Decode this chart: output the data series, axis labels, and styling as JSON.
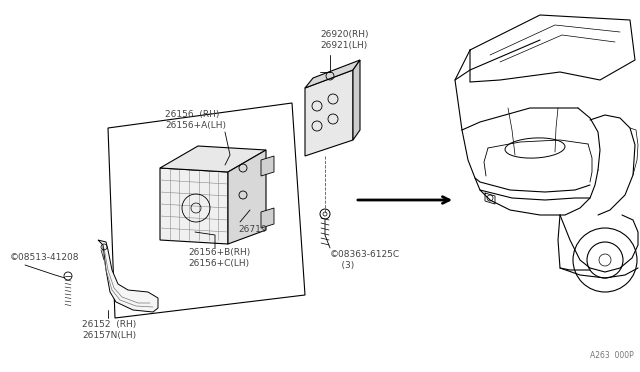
{
  "bg_color": "#ffffff",
  "lc": "#000000",
  "gray": "#999999",
  "page_num": "A263  000P",
  "labels": {
    "part_26920": "26920(RH)\n26921(LH)",
    "part_26156_top": "26156  (RH)\n26156+A(LH)",
    "part_26719": "26719",
    "part_26156_b": "26156+B(RH)\n26156+C(LH)",
    "part_26152": "26152  (RH)\n26157N(LH)",
    "part_08513": "©08513-41208",
    "part_08363": "©08363-6125C\n    (3)"
  }
}
